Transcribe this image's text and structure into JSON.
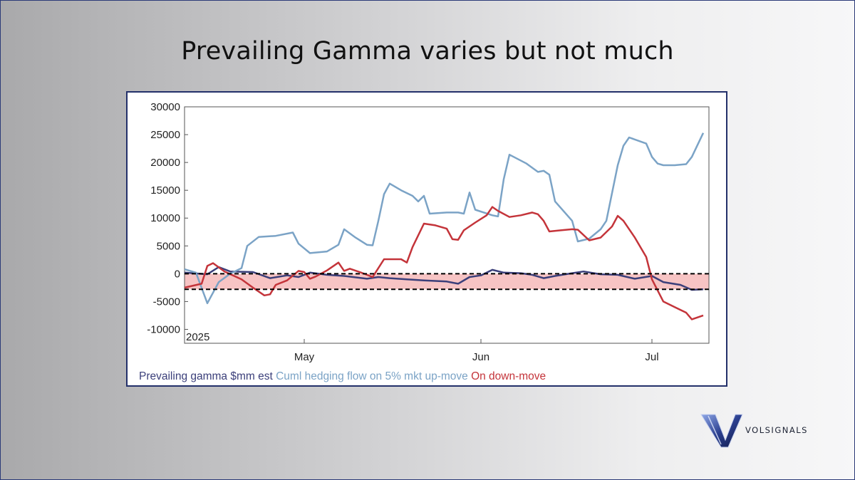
{
  "slide": {
    "title": "Prevailing Gamma varies but not much"
  },
  "brand": {
    "name": "VOLSIGNALS",
    "accent": "#2b3f8f"
  },
  "chart_data": {
    "type": "line",
    "title": "",
    "year_label": "2025",
    "x_range": [
      "2025-04-10",
      "2025-07-11"
    ],
    "ylim": [
      -12500,
      30000
    ],
    "yticks": [
      30000,
      25000,
      20000,
      15000,
      10000,
      5000,
      0,
      -5000,
      -10000
    ],
    "xticks": [
      {
        "label": "May",
        "date": "2025-05-01"
      },
      {
        "label": "Jun",
        "date": "2025-06-01"
      },
      {
        "label": "Jul",
        "date": "2025-07-01"
      }
    ],
    "band": {
      "from": -2800,
      "to": 0,
      "fill": "#f7c4c4",
      "line": "#000000"
    },
    "legend_position": "bottom",
    "series": [
      {
        "name": "Prevailing gamma $mm est",
        "color": "#3b3f7a",
        "points": [
          [
            "2025-04-10",
            200
          ],
          [
            "2025-04-14",
            -100
          ],
          [
            "2025-04-16",
            1200
          ],
          [
            "2025-04-18",
            400
          ],
          [
            "2025-04-22",
            300
          ],
          [
            "2025-04-25",
            -800
          ],
          [
            "2025-04-28",
            -300
          ],
          [
            "2025-04-30",
            -600
          ],
          [
            "2025-05-02",
            200
          ],
          [
            "2025-05-05",
            -200
          ],
          [
            "2025-05-08",
            -400
          ],
          [
            "2025-05-12",
            -900
          ],
          [
            "2025-05-14",
            -600
          ],
          [
            "2025-05-16",
            -800
          ],
          [
            "2025-05-19",
            -1000
          ],
          [
            "2025-05-22",
            -1200
          ],
          [
            "2025-05-26",
            -1400
          ],
          [
            "2025-05-28",
            -1800
          ],
          [
            "2025-05-30",
            -600
          ],
          [
            "2025-06-01",
            -300
          ],
          [
            "2025-06-03",
            700
          ],
          [
            "2025-06-05",
            200
          ],
          [
            "2025-06-08",
            100
          ],
          [
            "2025-06-10",
            -200
          ],
          [
            "2025-06-12",
            -800
          ],
          [
            "2025-06-14",
            -400
          ],
          [
            "2025-06-17",
            100
          ],
          [
            "2025-06-19",
            400
          ],
          [
            "2025-06-22",
            -100
          ],
          [
            "2025-06-25",
            -200
          ],
          [
            "2025-06-28",
            -900
          ],
          [
            "2025-07-01",
            -400
          ],
          [
            "2025-07-03",
            -1500
          ],
          [
            "2025-07-06",
            -2000
          ],
          [
            "2025-07-08",
            -2900
          ],
          [
            "2025-07-10",
            -2800
          ]
        ]
      },
      {
        "name": "Cuml hedging flow on 5% mkt up-move",
        "color": "#7ba3c6",
        "points": [
          [
            "2025-04-10",
            800
          ],
          [
            "2025-04-12",
            200
          ],
          [
            "2025-04-14",
            -5300
          ],
          [
            "2025-04-16",
            -1500
          ],
          [
            "2025-04-18",
            0
          ],
          [
            "2025-04-20",
            1000
          ],
          [
            "2025-04-21",
            5000
          ],
          [
            "2025-04-23",
            6600
          ],
          [
            "2025-04-26",
            6800
          ],
          [
            "2025-04-29",
            7400
          ],
          [
            "2025-04-30",
            5400
          ],
          [
            "2025-05-02",
            3700
          ],
          [
            "2025-05-05",
            4000
          ],
          [
            "2025-05-07",
            5200
          ],
          [
            "2025-05-08",
            8000
          ],
          [
            "2025-05-10",
            6500
          ],
          [
            "2025-05-12",
            5200
          ],
          [
            "2025-05-13",
            5100
          ],
          [
            "2025-05-14",
            9500
          ],
          [
            "2025-05-15",
            14300
          ],
          [
            "2025-05-16",
            16200
          ],
          [
            "2025-05-18",
            15000
          ],
          [
            "2025-05-20",
            14000
          ],
          [
            "2025-05-21",
            13000
          ],
          [
            "2025-05-22",
            14000
          ],
          [
            "2025-05-23",
            10800
          ],
          [
            "2025-05-26",
            11000
          ],
          [
            "2025-05-28",
            11000
          ],
          [
            "2025-05-29",
            10800
          ],
          [
            "2025-05-30",
            14600
          ],
          [
            "2025-05-31",
            11500
          ],
          [
            "2025-06-03",
            10500
          ],
          [
            "2025-06-04",
            10300
          ],
          [
            "2025-06-05",
            17000
          ],
          [
            "2025-06-06",
            21400
          ],
          [
            "2025-06-09",
            19800
          ],
          [
            "2025-06-11",
            18300
          ],
          [
            "2025-06-12",
            18500
          ],
          [
            "2025-06-13",
            17800
          ],
          [
            "2025-06-14",
            13000
          ],
          [
            "2025-06-17",
            9500
          ],
          [
            "2025-06-18",
            5800
          ],
          [
            "2025-06-20",
            6300
          ],
          [
            "2025-06-22",
            8000
          ],
          [
            "2025-06-23",
            9500
          ],
          [
            "2025-06-25",
            19500
          ],
          [
            "2025-06-26",
            23000
          ],
          [
            "2025-06-27",
            24500
          ],
          [
            "2025-06-30",
            23400
          ],
          [
            "2025-07-01",
            21000
          ],
          [
            "2025-07-02",
            19800
          ],
          [
            "2025-07-03",
            19500
          ],
          [
            "2025-07-05",
            19500
          ],
          [
            "2025-07-07",
            19700
          ],
          [
            "2025-07-08",
            21000
          ],
          [
            "2025-07-10",
            25300
          ]
        ]
      },
      {
        "name": "On down-move",
        "color": "#c4343a",
        "points": [
          [
            "2025-04-10",
            -2500
          ],
          [
            "2025-04-13",
            -1800
          ],
          [
            "2025-04-14",
            1400
          ],
          [
            "2025-04-15",
            1900
          ],
          [
            "2025-04-17",
            400
          ],
          [
            "2025-04-20",
            -1000
          ],
          [
            "2025-04-22",
            -2500
          ],
          [
            "2025-04-24",
            -3900
          ],
          [
            "2025-04-25",
            -3700
          ],
          [
            "2025-04-26",
            -2000
          ],
          [
            "2025-04-28",
            -1200
          ],
          [
            "2025-04-30",
            500
          ],
          [
            "2025-05-01",
            300
          ],
          [
            "2025-05-02",
            -900
          ],
          [
            "2025-05-03",
            -500
          ],
          [
            "2025-05-05",
            600
          ],
          [
            "2025-05-07",
            2000
          ],
          [
            "2025-05-08",
            500
          ],
          [
            "2025-05-09",
            900
          ],
          [
            "2025-05-11",
            200
          ],
          [
            "2025-05-13",
            -600
          ],
          [
            "2025-05-15",
            2600
          ],
          [
            "2025-05-18",
            2600
          ],
          [
            "2025-05-19",
            2000
          ],
          [
            "2025-05-20",
            4800
          ],
          [
            "2025-05-22",
            9000
          ],
          [
            "2025-05-24",
            8700
          ],
          [
            "2025-05-26",
            8100
          ],
          [
            "2025-05-27",
            6200
          ],
          [
            "2025-05-28",
            6100
          ],
          [
            "2025-05-29",
            7800
          ],
          [
            "2025-05-31",
            9200
          ],
          [
            "2025-06-02",
            10500
          ],
          [
            "2025-06-03",
            12000
          ],
          [
            "2025-06-04",
            11300
          ],
          [
            "2025-06-06",
            10200
          ],
          [
            "2025-06-08",
            10500
          ],
          [
            "2025-06-10",
            11000
          ],
          [
            "2025-06-11",
            10700
          ],
          [
            "2025-06-12",
            9500
          ],
          [
            "2025-06-13",
            7600
          ],
          [
            "2025-06-15",
            7800
          ],
          [
            "2025-06-17",
            8000
          ],
          [
            "2025-06-18",
            7900
          ],
          [
            "2025-06-20",
            6000
          ],
          [
            "2025-06-22",
            6500
          ],
          [
            "2025-06-24",
            8500
          ],
          [
            "2025-06-25",
            10400
          ],
          [
            "2025-06-26",
            9500
          ],
          [
            "2025-06-28",
            6500
          ],
          [
            "2025-06-30",
            3000
          ],
          [
            "2025-07-01",
            -1000
          ],
          [
            "2025-07-02",
            -3000
          ],
          [
            "2025-07-03",
            -5000
          ],
          [
            "2025-07-05",
            -6000
          ],
          [
            "2025-07-07",
            -7000
          ],
          [
            "2025-07-08",
            -8200
          ],
          [
            "2025-07-10",
            -7500
          ]
        ]
      }
    ]
  }
}
